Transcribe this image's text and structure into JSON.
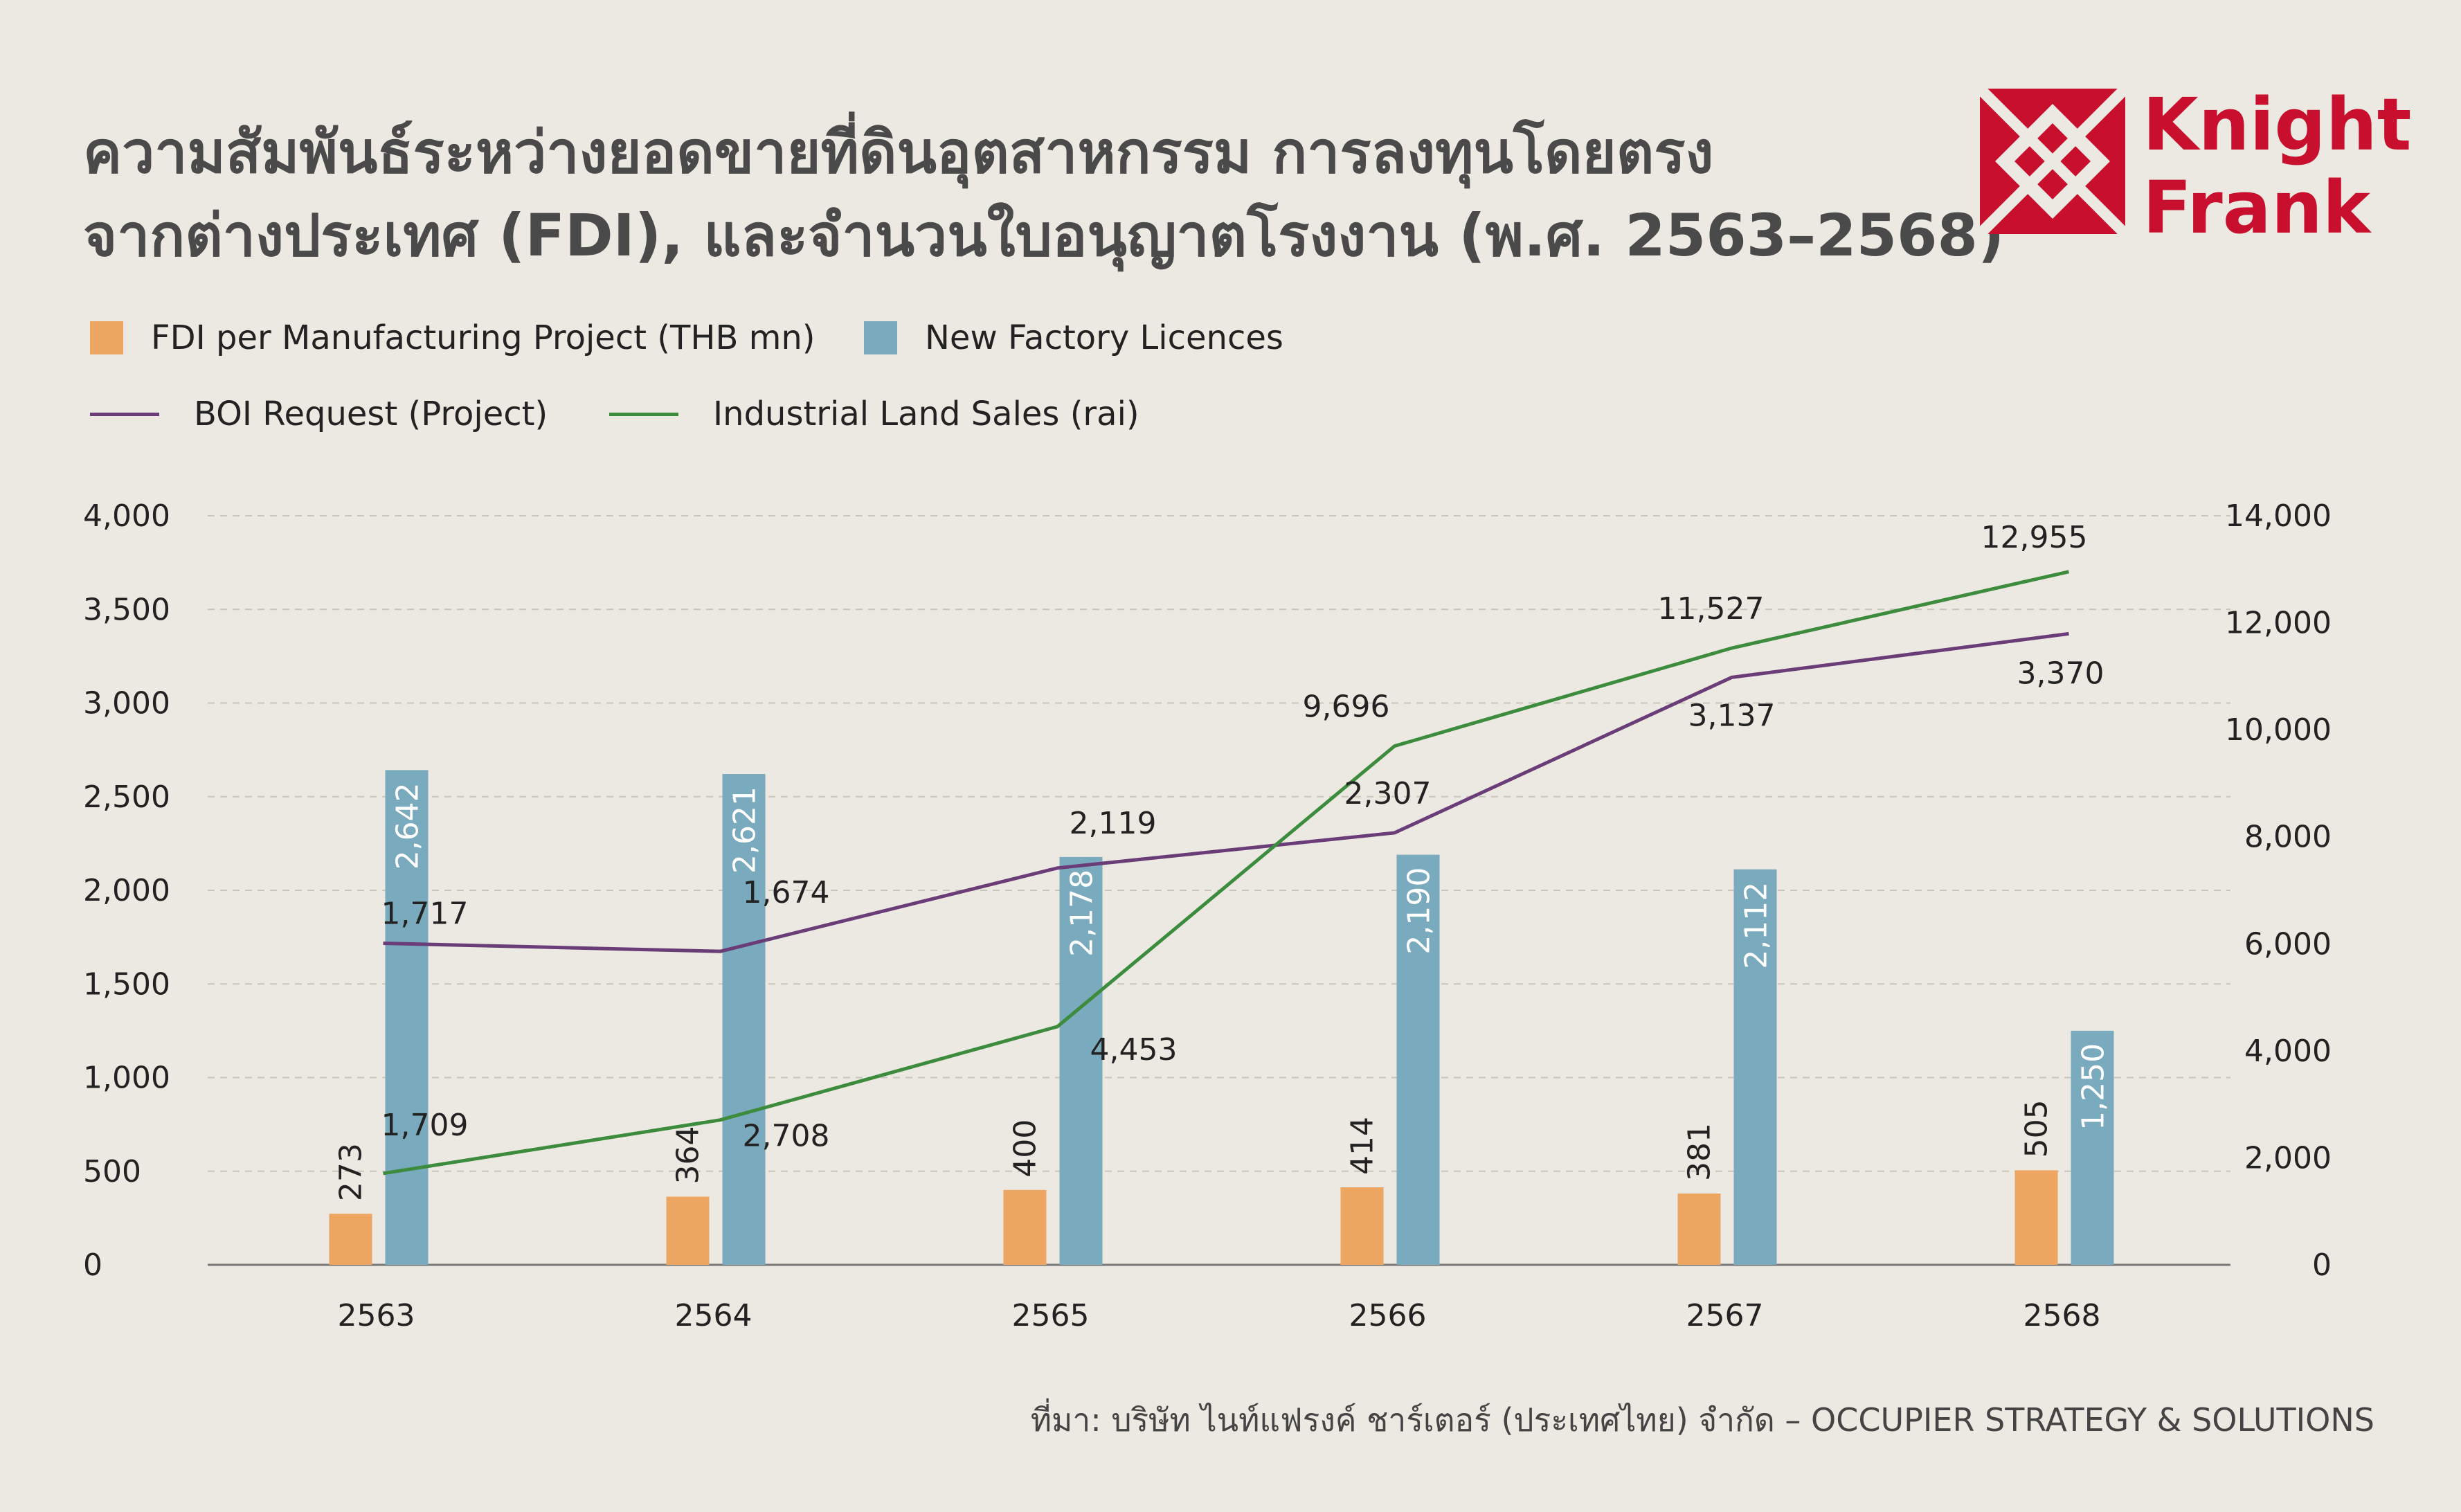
{
  "title": {
    "line1": "ความสัมพันธ์ระหว่างยอดขายที่ดินอุตสาหกรรม การลงทุนโดยตรง",
    "line2": "จากต่างประเทศ (FDI), และจำนวนใบอนุญาตโรงงาน (พ.ศ. 2563–2568)"
  },
  "logo": {
    "line1": "Knight",
    "line2": "Frank",
    "color": "#c8102e"
  },
  "legend": {
    "fdi": "FDI per Manufacturing Project (THB mn)",
    "licences": "New Factory Licences",
    "boi": "BOI Request (Project)",
    "land": "Industrial Land Sales (rai)"
  },
  "colors": {
    "fdi": "#eda562",
    "licences": "#7aaabd",
    "boi": "#6b3d78",
    "land": "#3d8b3d",
    "grid": "#c9c6bb",
    "axis": "#777777",
    "text": "#222222"
  },
  "source": "ที่มา: บริษัท ไนท์แฟรงค์ ชาร์เตอร์ (ประเทศไทย) จำกัด – OCCUPIER STRATEGY & SOLUTIONS",
  "chart_data": {
    "type": "bar",
    "categories": [
      "2563",
      "2564",
      "2565",
      "2566",
      "2567",
      "2568"
    ],
    "series": [
      {
        "name": "FDI per Manufacturing Project (THB mn)",
        "type": "bar",
        "axis": "left",
        "values": [
          273,
          364,
          400,
          414,
          381,
          505
        ],
        "labels": [
          "273",
          "364",
          "400",
          "414",
          "381",
          "505"
        ]
      },
      {
        "name": "New Factory Licences",
        "type": "bar",
        "axis": "left",
        "values": [
          2642,
          2621,
          2178,
          2190,
          2112,
          1250
        ],
        "labels": [
          "2,642",
          "2,621",
          "2,178",
          "2,190",
          "2,112",
          "1,250"
        ]
      },
      {
        "name": "BOI Request (Project)",
        "type": "line",
        "axis": "left",
        "values": [
          1717,
          1674,
          2119,
          2307,
          3137,
          3370
        ],
        "labels": [
          "1,717",
          "1,674",
          "2,119",
          "2,307",
          "3,137",
          "3,370"
        ]
      },
      {
        "name": "Industrial Land Sales (rai)",
        "type": "line",
        "axis": "right",
        "values": [
          1709,
          2708,
          4453,
          9696,
          11527,
          12955
        ],
        "labels": [
          "1,709",
          "2,708",
          "4,453",
          "9,696",
          "11,527",
          "12,955"
        ]
      }
    ],
    "y_left": {
      "min": 0,
      "max": 4000,
      "ticks": [
        "0",
        "500",
        "1,000",
        "1,500",
        "2,000",
        "2,500",
        "3,000",
        "3,500",
        "4,000"
      ]
    },
    "y_right": {
      "min": 0,
      "max": 14000,
      "ticks": [
        "0",
        "2,000",
        "4,000",
        "6,000",
        "8,000",
        "10,000",
        "12,000",
        "14,000"
      ]
    },
    "grid": true,
    "legend_position": "top-left"
  }
}
